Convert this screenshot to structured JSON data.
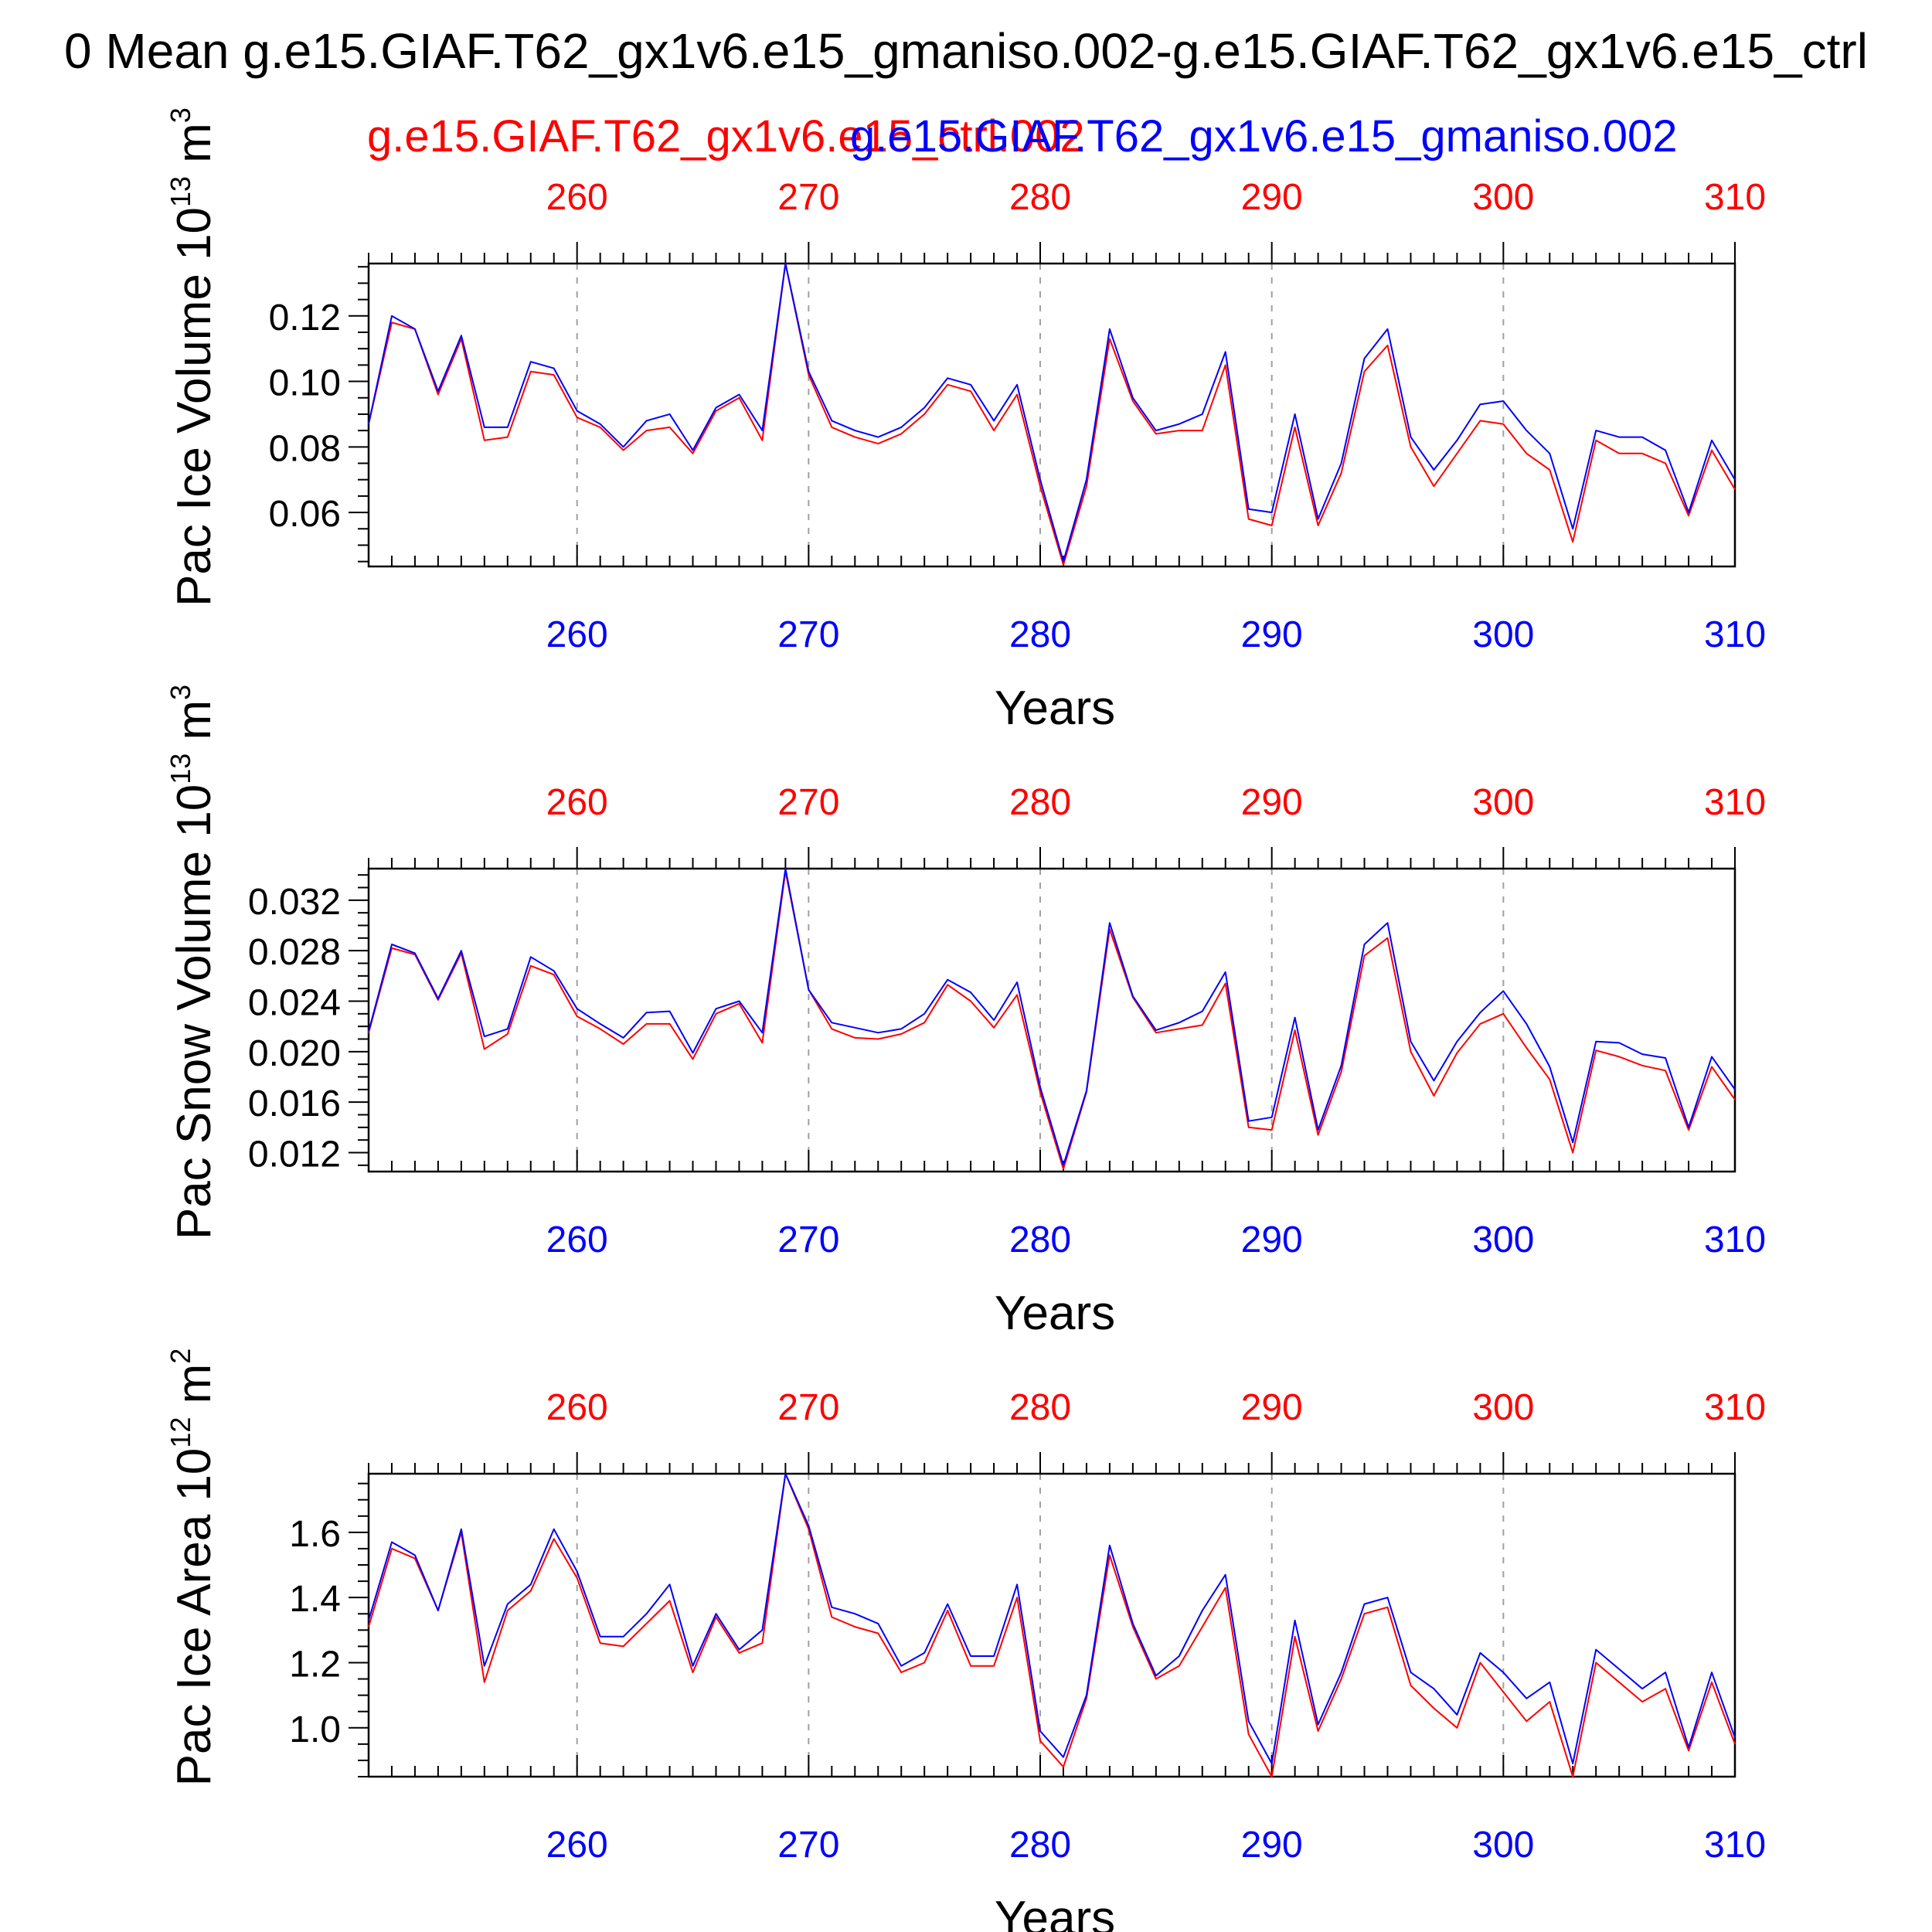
{
  "figure": {
    "title": "0 Mean g.e15.GIAF.T62_gx1v6.e15_gmaniso.002-g.e15.GIAF.T62_gx1v6.e15_ctrl",
    "legend_red": "g.e15.GIAF.T62_gx1v6.e15_ctrl.002",
    "legend_blue": "g.e15.GIAF.T62_gx1v6.e15_gmaniso.002",
    "colors": {
      "red": "#ff0000",
      "blue": "#0000ff",
      "text": "#000000",
      "grid": "#a0a0a0"
    }
  },
  "chart_data": [
    {
      "type": "line",
      "ylabel_main": "Pac Ice Volume 10",
      "ylabel_exp": "13",
      "ylabel_unit": " m",
      "ylabel_unit_exp": "3",
      "xlabel": "Years",
      "xlim": [
        251,
        310
      ],
      "ylim": [
        0.0435,
        0.136
      ],
      "yticks": [
        0.06,
        0.08,
        0.1,
        0.12
      ],
      "ytick_labels": [
        "0.06",
        "0.08",
        "0.10",
        "0.12"
      ],
      "xticks": [
        260,
        270,
        280,
        290,
        300,
        310
      ],
      "xtick_labels": [
        "260",
        "270",
        "280",
        "290",
        "300",
        "310"
      ],
      "series": [
        {
          "color": "#ff0000",
          "values": [
            0.087,
            0.118,
            0.116,
            0.096,
            0.113,
            0.082,
            0.083,
            0.103,
            0.102,
            0.089,
            0.086,
            0.079,
            0.085,
            0.086,
            0.078,
            0.091,
            0.095,
            0.082,
            0.136,
            0.102,
            0.086,
            0.083,
            0.081,
            0.084,
            0.09,
            0.099,
            0.097,
            0.085,
            0.096,
            0.068,
            0.044,
            0.068,
            0.113,
            0.094,
            0.084,
            0.085,
            0.085,
            0.105,
            0.058,
            0.056,
            0.086,
            0.056,
            0.072,
            0.103,
            0.111,
            0.08,
            0.068,
            0.078,
            0.088,
            0.087,
            0.078,
            0.073,
            0.051,
            0.082,
            0.078,
            0.078,
            0.075,
            0.059,
            0.079,
            0.067
          ]
        },
        {
          "color": "#0000ff",
          "values": [
            0.087,
            0.12,
            0.116,
            0.097,
            0.114,
            0.086,
            0.086,
            0.106,
            0.104,
            0.091,
            0.087,
            0.08,
            0.088,
            0.09,
            0.079,
            0.092,
            0.096,
            0.085,
            0.136,
            0.103,
            0.088,
            0.085,
            0.083,
            0.086,
            0.092,
            0.101,
            0.099,
            0.088,
            0.099,
            0.07,
            0.045,
            0.07,
            0.116,
            0.095,
            0.085,
            0.087,
            0.09,
            0.109,
            0.061,
            0.06,
            0.09,
            0.058,
            0.075,
            0.107,
            0.116,
            0.083,
            0.073,
            0.082,
            0.093,
            0.094,
            0.085,
            0.078,
            0.055,
            0.085,
            0.083,
            0.083,
            0.079,
            0.06,
            0.082,
            0.07
          ]
        }
      ]
    },
    {
      "type": "line",
      "ylabel_main": "Pac Snow Volume 10",
      "ylabel_exp": "13",
      "ylabel_unit": " m",
      "ylabel_unit_exp": "3",
      "xlabel": "Years",
      "xlim": [
        251,
        310
      ],
      "ylim": [
        0.0105,
        0.0345
      ],
      "yticks": [
        0.012,
        0.016,
        0.02,
        0.024,
        0.028,
        0.032
      ],
      "ytick_labels": [
        "0.012",
        "0.016",
        "0.020",
        "0.024",
        "0.028",
        "0.032"
      ],
      "xticks": [
        260,
        270,
        280,
        290,
        300,
        310
      ],
      "xtick_labels": [
        "260",
        "270",
        "280",
        "290",
        "300",
        "310"
      ],
      "series": [
        {
          "color": "#ff0000",
          "values": [
            0.0215,
            0.0282,
            0.0277,
            0.0241,
            0.0278,
            0.0202,
            0.0214,
            0.0268,
            0.0261,
            0.0228,
            0.0218,
            0.0206,
            0.0222,
            0.0222,
            0.0194,
            0.023,
            0.0238,
            0.0207,
            0.0343,
            0.0249,
            0.0218,
            0.0211,
            0.021,
            0.0214,
            0.0223,
            0.0253,
            0.024,
            0.0219,
            0.0245,
            0.0168,
            0.0107,
            0.0168,
            0.0297,
            0.0243,
            0.0215,
            0.0218,
            0.0221,
            0.0254,
            0.014,
            0.0138,
            0.0217,
            0.0134,
            0.0184,
            0.0276,
            0.029,
            0.02,
            0.0165,
            0.0199,
            0.0222,
            0.023,
            0.0203,
            0.0178,
            0.012,
            0.0201,
            0.0196,
            0.0189,
            0.0185,
            0.0138,
            0.0188,
            0.0162
          ]
        },
        {
          "color": "#0000ff",
          "values": [
            0.0216,
            0.0285,
            0.0278,
            0.0242,
            0.028,
            0.0212,
            0.0218,
            0.0275,
            0.0264,
            0.0234,
            0.0222,
            0.0211,
            0.0231,
            0.0232,
            0.0199,
            0.0234,
            0.024,
            0.0215,
            0.0345,
            0.0249,
            0.0223,
            0.0219,
            0.0215,
            0.0218,
            0.023,
            0.0257,
            0.0247,
            0.0225,
            0.0255,
            0.0172,
            0.011,
            0.0169,
            0.0302,
            0.0244,
            0.0217,
            0.0223,
            0.0232,
            0.0263,
            0.0145,
            0.0148,
            0.0227,
            0.0138,
            0.0189,
            0.0285,
            0.0302,
            0.0208,
            0.0177,
            0.0208,
            0.0231,
            0.0248,
            0.0222,
            0.0188,
            0.0128,
            0.0208,
            0.0207,
            0.0198,
            0.0195,
            0.014,
            0.0196,
            0.017
          ]
        }
      ]
    },
    {
      "type": "line",
      "ylabel_main": "Pac Ice Area 10",
      "ylabel_exp": "12",
      "ylabel_unit": " m",
      "ylabel_unit_exp": "2",
      "xlabel": "Years",
      "xlim": [
        251,
        310
      ],
      "ylim": [
        0.85,
        1.78
      ],
      "yticks": [
        1.0,
        1.2,
        1.4,
        1.6
      ],
      "ytick_labels": [
        "1.0",
        "1.2",
        "1.4",
        "1.6"
      ],
      "xticks": [
        260,
        270,
        280,
        290,
        300,
        310
      ],
      "xtick_labels": [
        "260",
        "270",
        "280",
        "290",
        "300",
        "310"
      ],
      "series": [
        {
          "color": "#ff0000",
          "values": [
            1.31,
            1.55,
            1.52,
            1.36,
            1.6,
            1.14,
            1.36,
            1.42,
            1.58,
            1.46,
            1.26,
            1.25,
            1.32,
            1.39,
            1.17,
            1.34,
            1.23,
            1.26,
            1.78,
            1.61,
            1.34,
            1.31,
            1.29,
            1.17,
            1.2,
            1.36,
            1.19,
            1.19,
            1.4,
            0.96,
            0.88,
            1.09,
            1.53,
            1.31,
            1.15,
            1.19,
            1.31,
            1.43,
            0.98,
            0.85,
            1.28,
            0.99,
            1.15,
            1.35,
            1.37,
            1.13,
            1.06,
            1.0,
            1.2,
            1.11,
            1.02,
            1.08,
            0.85,
            1.2,
            1.14,
            1.08,
            1.12,
            0.93,
            1.14,
            0.95
          ]
        },
        {
          "color": "#0000ff",
          "values": [
            1.33,
            1.57,
            1.53,
            1.36,
            1.61,
            1.19,
            1.38,
            1.44,
            1.61,
            1.48,
            1.28,
            1.28,
            1.35,
            1.44,
            1.19,
            1.35,
            1.24,
            1.3,
            1.78,
            1.62,
            1.37,
            1.35,
            1.32,
            1.19,
            1.23,
            1.38,
            1.22,
            1.22,
            1.44,
            0.99,
            0.91,
            1.1,
            1.56,
            1.32,
            1.16,
            1.22,
            1.36,
            1.47,
            1.02,
            0.89,
            1.33,
            1.01,
            1.17,
            1.38,
            1.4,
            1.17,
            1.12,
            1.04,
            1.23,
            1.17,
            1.09,
            1.14,
            0.89,
            1.24,
            1.18,
            1.12,
            1.17,
            0.94,
            1.17,
            0.97
          ]
        }
      ]
    }
  ]
}
